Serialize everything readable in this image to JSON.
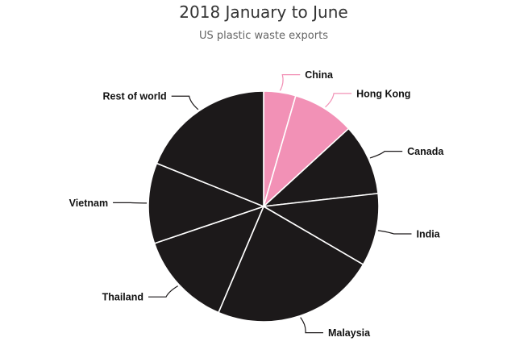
{
  "chart_data": {
    "type": "pie",
    "title": "2018 January to June",
    "subtitle": "US plastic waste exports",
    "start_angle_deg": 0,
    "direction": "clockwise",
    "highlight_color": "#f291b6",
    "highlight_connector_color": "#f291b6",
    "base_color": "#1c191a",
    "base_connector_color": "#1c191a",
    "slices": [
      {
        "label": "China",
        "value": 4.5,
        "highlighted": true
      },
      {
        "label": "Hong Kong",
        "value": 8.7,
        "highlighted": true
      },
      {
        "label": "Canada",
        "value": 10.0,
        "highlighted": false
      },
      {
        "label": "India",
        "value": 10.2,
        "highlighted": false
      },
      {
        "label": "Malaysia",
        "value": 23.0,
        "highlighted": false
      },
      {
        "label": "Thailand",
        "value": 13.4,
        "highlighted": false
      },
      {
        "label": "Vietnam",
        "value": 11.3,
        "highlighted": false
      },
      {
        "label": "Rest of world",
        "value": 18.9,
        "highlighted": false
      }
    ]
  }
}
